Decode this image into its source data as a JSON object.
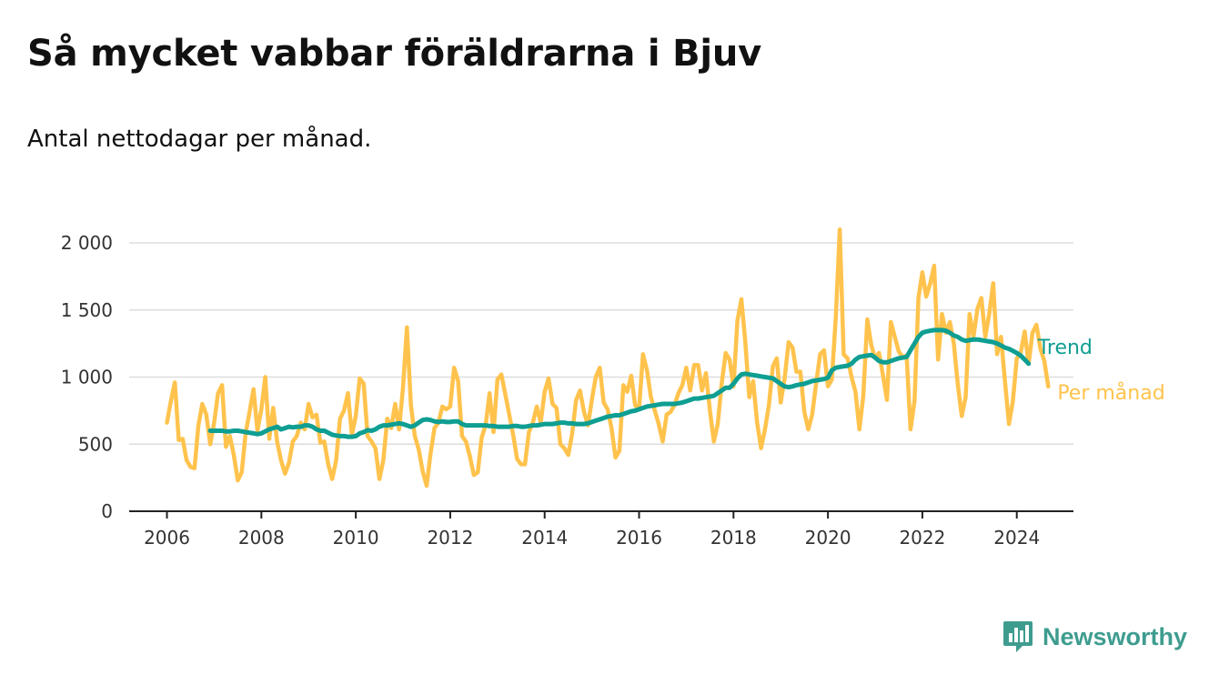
{
  "title": "Så mycket vabbar föräldrarna i Bjuv",
  "subtitle": "Antal nettodagar per månad.",
  "brand": {
    "name": "Newsworthy",
    "icon": "bar-chart-speech-bubble-icon"
  },
  "colors": {
    "monthly": "#ffc34d",
    "trend": "#0f9e92",
    "grid": "#dddddd",
    "axis": "#222222",
    "brand": "#3e9c8f"
  },
  "chart_data": {
    "type": "line",
    "ylim": [
      0,
      2000
    ],
    "yticks": [
      0,
      500,
      1000,
      1500,
      2000
    ],
    "ytick_labels": [
      "0",
      "500",
      "1 000",
      "1 500",
      "2 000"
    ],
    "xlim": [
      2005.2,
      2025.2
    ],
    "xticks": [
      2006,
      2008,
      2010,
      2012,
      2014,
      2016,
      2018,
      2020,
      2022,
      2024
    ],
    "xtick_labels": [
      "2006",
      "2008",
      "2010",
      "2012",
      "2014",
      "2016",
      "2018",
      "2020",
      "2022",
      "2024"
    ],
    "grid": true,
    "series": [
      {
        "name": "Per månad",
        "start": "2006-01",
        "values": [
          660,
          820,
          960,
          530,
          540,
          380,
          330,
          320,
          640,
          800,
          720,
          500,
          660,
          880,
          940,
          480,
          560,
          420,
          230,
          290,
          580,
          740,
          910,
          600,
          760,
          1000,
          540,
          770,
          520,
          380,
          280,
          360,
          520,
          560,
          660,
          610,
          800,
          700,
          720,
          510,
          520,
          350,
          240,
          380,
          690,
          750,
          880,
          570,
          710,
          990,
          950,
          560,
          520,
          470,
          240,
          380,
          690,
          620,
          800,
          610,
          920,
          1370,
          790,
          560,
          460,
          300,
          190,
          430,
          620,
          660,
          780,
          760,
          780,
          1070,
          970,
          560,
          520,
          410,
          270,
          290,
          550,
          640,
          880,
          590,
          980,
          1020,
          870,
          720,
          570,
          390,
          350,
          350,
          590,
          660,
          780,
          660,
          890,
          990,
          800,
          770,
          500,
          470,
          420,
          580,
          830,
          900,
          740,
          640,
          830,
          1000,
          1070,
          810,
          760,
          620,
          400,
          450,
          940,
          890,
          1010,
          790,
          760,
          1170,
          1050,
          850,
          750,
          650,
          520,
          720,
          740,
          790,
          880,
          940,
          1070,
          900,
          1090,
          1090,
          900,
          1030,
          750,
          520,
          650,
          950,
          1180,
          1130,
          930,
          1420,
          1580,
          1260,
          850,
          970,
          660,
          470,
          610,
          790,
          1080,
          1140,
          810,
          990,
          1260,
          1220,
          1040,
          1040,
          740,
          610,
          720,
          950,
          1170,
          1200,
          930,
          980,
          1450,
          2100,
          1170,
          1140,
          1000,
          890,
          610,
          860,
          1430,
          1240,
          1140,
          1180,
          1010,
          830,
          1410,
          1300,
          1190,
          1150,
          1160,
          610,
          820,
          1590,
          1780,
          1600,
          1700,
          1830,
          1130,
          1470,
          1330,
          1410,
          1250,
          950,
          710,
          850,
          1470,
          1300,
          1510,
          1590,
          1300,
          1470,
          1700,
          1170,
          1300,
          970,
          650,
          820,
          1140,
          1180,
          1340,
          1100,
          1330,
          1390,
          1210,
          1120,
          930
        ]
      },
      {
        "name": "Trend",
        "start": "2006-12",
        "values": [
          600,
          600,
          600,
          600,
          595,
          595,
          600,
          600,
          595,
          590,
          585,
          580,
          575,
          580,
          595,
          610,
          620,
          630,
          610,
          620,
          630,
          625,
          630,
          630,
          640,
          640,
          630,
          610,
          600,
          600,
          585,
          570,
          565,
          560,
          560,
          555,
          555,
          560,
          580,
          590,
          605,
          600,
          610,
          630,
          640,
          640,
          645,
          650,
          655,
          650,
          640,
          630,
          640,
          660,
          680,
          685,
          680,
          670,
          665,
          670,
          665,
          665,
          670,
          670,
          650,
          640,
          640,
          640,
          640,
          640,
          640,
          635,
          635,
          630,
          630,
          630,
          630,
          635,
          635,
          630,
          630,
          635,
          640,
          640,
          645,
          650,
          650,
          650,
          655,
          660,
          660,
          655,
          655,
          650,
          650,
          650,
          655,
          665,
          675,
          685,
          695,
          705,
          710,
          715,
          715,
          725,
          735,
          745,
          750,
          760,
          770,
          780,
          785,
          790,
          795,
          800,
          800,
          800,
          800,
          805,
          810,
          820,
          830,
          840,
          840,
          845,
          850,
          855,
          860,
          880,
          900,
          920,
          920,
          950,
          990,
          1020,
          1025,
          1020,
          1015,
          1010,
          1005,
          1000,
          995,
          990,
          970,
          950,
          930,
          925,
          930,
          940,
          945,
          950,
          960,
          970,
          975,
          980,
          985,
          995,
          1050,
          1070,
          1075,
          1080,
          1085,
          1100,
          1130,
          1150,
          1155,
          1160,
          1165,
          1145,
          1120,
          1110,
          1110,
          1120,
          1130,
          1140,
          1145,
          1150,
          1200,
          1250,
          1300,
          1330,
          1340,
          1345,
          1350,
          1350,
          1350,
          1345,
          1330,
          1310,
          1300,
          1280,
          1270,
          1275,
          1280,
          1280,
          1275,
          1270,
          1265,
          1260,
          1250,
          1235,
          1220,
          1210,
          1195,
          1180,
          1160,
          1130,
          1100
        ]
      }
    ]
  }
}
